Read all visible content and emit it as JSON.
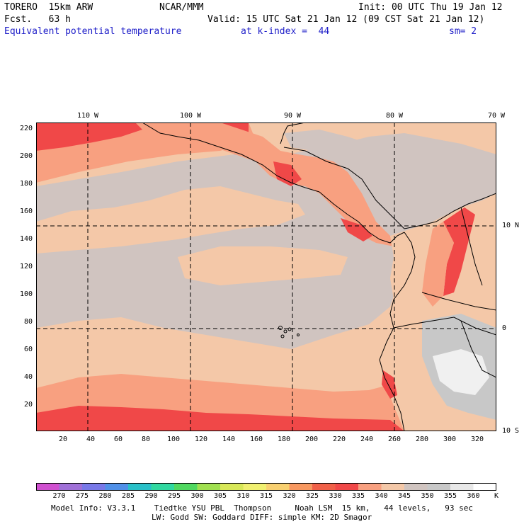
{
  "header": {
    "model": "TORERO  15km ARW",
    "org": "NCAR/MMM",
    "init": "Init: 00 UTC Thu 19 Jan 12",
    "fcst": "Fcst.   63 h",
    "valid": "Valid: 15 UTC Sat 21 Jan 12 (09 CST Sat 21 Jan 12)",
    "field": "Equivalent potential temperature",
    "level": "at k-index =  44",
    "smooth": "sm= 2"
  },
  "axes": {
    "top_lon": [
      "110 W",
      "100 W",
      "90 W",
      "80 W",
      "70 W"
    ],
    "right_lat": [
      "10 N",
      "0",
      "10 S"
    ],
    "left_y": [
      "220",
      "200",
      "180",
      "160",
      "140",
      "120",
      "100",
      "80",
      "60",
      "40",
      "20"
    ],
    "bottom_x": [
      "20",
      "40",
      "60",
      "80",
      "100",
      "120",
      "140",
      "160",
      "180",
      "200",
      "220",
      "240",
      "260",
      "280",
      "300",
      "320"
    ]
  },
  "colorbar": {
    "unit": "K",
    "labels": [
      "270",
      "275",
      "280",
      "285",
      "290",
      "295",
      "300",
      "305",
      "310",
      "315",
      "320",
      "325",
      "330",
      "335",
      "340",
      "345",
      "350",
      "355",
      "360"
    ],
    "colors": [
      "#d050d0",
      "#a070d8",
      "#7878e8",
      "#5090e8",
      "#28c0c8",
      "#30d8a0",
      "#50d860",
      "#a0e050",
      "#d8e858",
      "#f0f070",
      "#f8d070",
      "#f89860",
      "#f06048",
      "#f04848",
      "#f8a080",
      "#f4c8a8",
      "#d0c4c0",
      "#c8c8c8",
      "#e8e8e8",
      "#ffffff"
    ]
  },
  "map_colors": {
    "ocean_base": "#f4c8a8",
    "grey_band": "#d0c4c0",
    "pink": "#f8a080",
    "red": "#f04848",
    "light_grey": "#c8c8c8",
    "white": "#f0f0f0",
    "coast": "#000000",
    "grid": "#000000"
  },
  "footer": {
    "line1": "Model Info: V3.3.1    Tiedtke YSU PBL  Thompson     Noah LSM  15 km,   44 levels,   93 sec",
    "line2": "LW: Godd SW: Goddard DIFF: simple KM: 2D Smagor"
  }
}
